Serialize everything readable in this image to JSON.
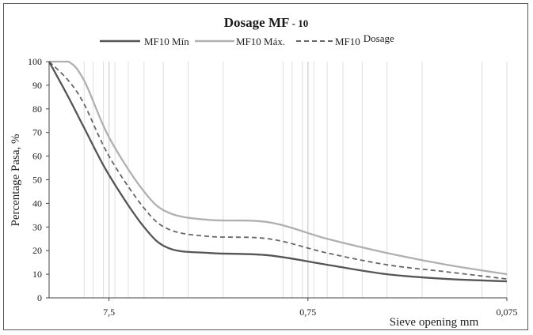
{
  "chart_data": {
    "type": "line",
    "title": "Dosage MF - 10",
    "title_main": "Dosage MF",
    "title_suffix": " - 10",
    "xlabel": "Sieve opening  mm",
    "ylabel": "Percentage Pasa, %",
    "x_scale": "log",
    "x_reversed": true,
    "xlim": [
      15,
      0.075
    ],
    "ylim": [
      0,
      100
    ],
    "x_tick_labels": [
      "7,5",
      "0,75",
      "0,075"
    ],
    "y_ticks": [
      0,
      10,
      20,
      30,
      40,
      50,
      60,
      70,
      80,
      90,
      100
    ],
    "grid": "vertical",
    "legend_position": "top",
    "series": [
      {
        "name": "MF10 Mín",
        "color": "#555555",
        "dash": "solid",
        "x": [
          15,
          12,
          10,
          7.5,
          5,
          3.75,
          2.36,
          1.18,
          0.6,
          0.3,
          0.15,
          0.075
        ],
        "y": [
          100,
          85,
          72,
          52,
          30,
          21,
          19,
          18,
          14,
          10,
          8,
          7
        ]
      },
      {
        "name": "MF10 Máx.",
        "color": "#b0b0b0",
        "dash": "solid",
        "x": [
          15,
          12,
          10,
          7.5,
          5,
          3.75,
          2.36,
          1.18,
          0.6,
          0.3,
          0.15,
          0.075
        ],
        "y": [
          100,
          100,
          92,
          68,
          45,
          36,
          33,
          32,
          25,
          19,
          14,
          10
        ]
      },
      {
        "name": "MF10 Dosage",
        "legend_name_parts": [
          "MF10",
          "Dosage"
        ],
        "color": "#666666",
        "dash": "dashed",
        "x": [
          15,
          12,
          10,
          7.5,
          5,
          3.75,
          2.36,
          1.18,
          0.6,
          0.3,
          0.15,
          0.075
        ],
        "y": [
          100,
          92,
          82,
          60,
          38,
          29,
          26,
          25,
          19,
          14,
          11,
          8
        ]
      }
    ]
  }
}
